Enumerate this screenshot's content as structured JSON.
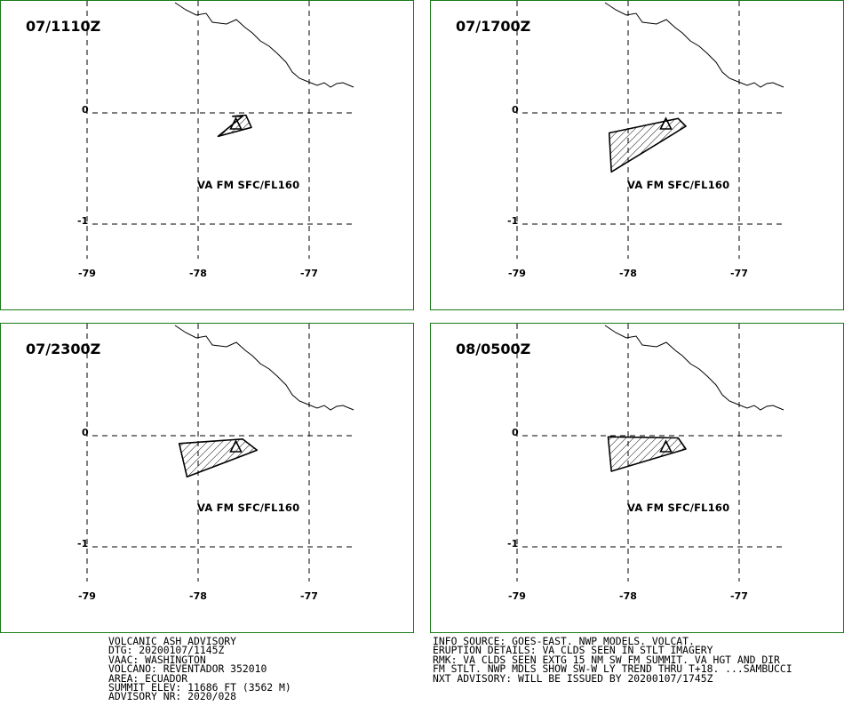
{
  "panels": [
    {
      "title": "07/1110Z",
      "label": "VA FM SFC/FL160",
      "polygon": [
        [
          -77.82,
          -0.21
        ],
        [
          -77.6,
          -0.03
        ],
        [
          -77.69,
          -0.03
        ],
        [
          -77.57,
          -0.02
        ],
        [
          -77.52,
          -0.13
        ]
      ]
    },
    {
      "title": "07/1700Z",
      "label": "VA FM SFC/FL160",
      "polygon": [
        [
          -78.15,
          -0.53
        ],
        [
          -78.17,
          -0.18
        ],
        [
          -77.55,
          -0.05
        ],
        [
          -77.48,
          -0.12
        ]
      ]
    },
    {
      "title": "07/2300Z",
      "label": "VA FM SFC/FL160",
      "polygon": [
        [
          -78.1,
          -0.37
        ],
        [
          -78.17,
          -0.07
        ],
        [
          -77.6,
          -0.03
        ],
        [
          -77.47,
          -0.13
        ]
      ]
    },
    {
      "title": "08/0500Z",
      "label": "VA FM SFC/FL160",
      "polygon": [
        [
          -78.15,
          -0.32
        ],
        [
          -78.18,
          -0.01
        ],
        [
          -77.55,
          -0.02
        ],
        [
          -77.48,
          -0.12
        ]
      ]
    }
  ],
  "axes": {
    "lon_ticks": [
      "-79",
      "-78",
      "-77"
    ],
    "lat_ticks": [
      "0",
      "-1"
    ]
  },
  "advisory_left": [
    "VOLCANIC ASH ADVISORY",
    "DTG: 20200107/1145Z",
    "VAAC: WASHINGTON",
    "VOLCANO: REVENTADOR 352010",
    "AREA: ECUADOR",
    "SUMMIT ELEV: 11686 FT (3562 M)",
    "ADVISORY NR: 2020/028"
  ],
  "advisory_right": [
    "INFO SOURCE: GOES-EAST. NWP MODELS. VOLCAT.",
    "ERUPTION DETAILS: VA CLDS SEEN IN STLT IMAGERY",
    "RMK: VA CLDS SEEN EXTG 15 NM SW FM SUMMIT. VA HGT AND DIR",
    "FM STLT. NWP MDLS SHOW SW-W LY TREND THRU T+18. ...SAMBUCCI",
    "NXT ADVISORY: WILL BE ISSUED BY 20200107/1745Z"
  ],
  "colors": {
    "frame": "#1a7a1a",
    "ink": "#000000"
  }
}
